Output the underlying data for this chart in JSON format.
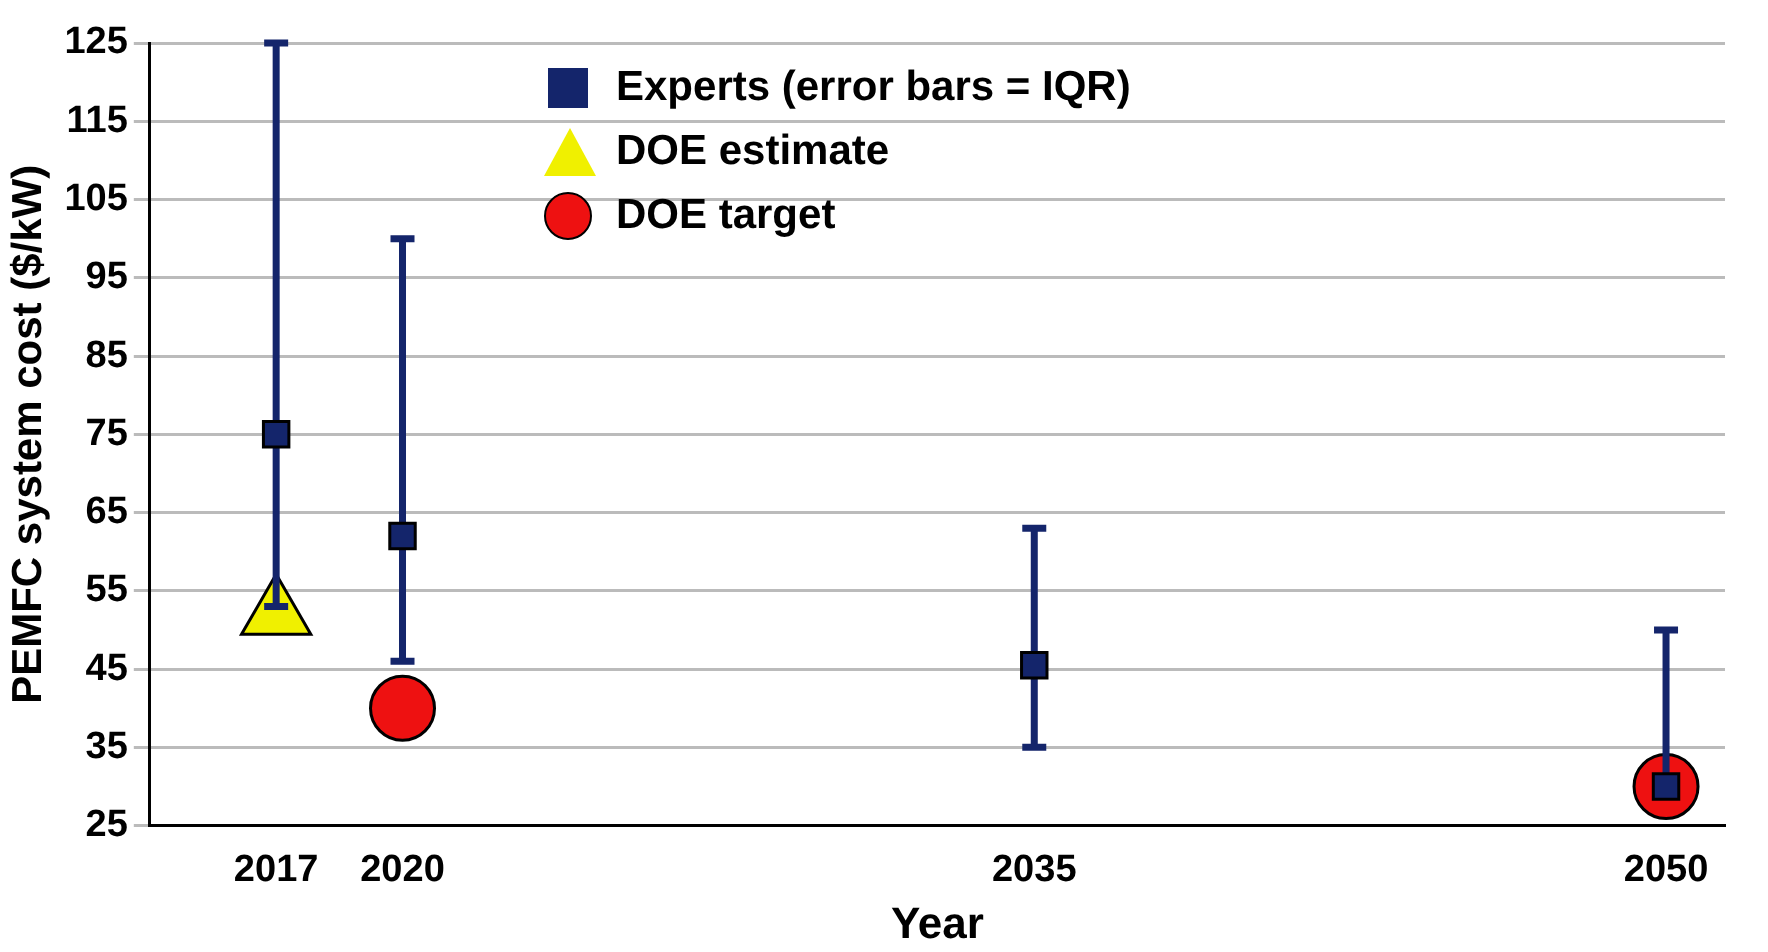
{
  "chart_data": {
    "type": "scatter",
    "xlabel": "Year",
    "ylabel": "PEMFC system cost ($/kW)",
    "xlim": [
      2014,
      2051.4
    ],
    "xticks": [
      2017,
      2020,
      2035,
      2050
    ],
    "ylim": [
      25,
      125
    ],
    "yticks": [
      25,
      35,
      45,
      55,
      65,
      75,
      85,
      95,
      105,
      115,
      125
    ],
    "grid": "y",
    "legend": "top left",
    "series": [
      {
        "name": "Experts (error bars = IQR)",
        "color": "#14256b",
        "marker": "square",
        "x": [
          2017,
          2020,
          2035,
          2050
        ],
        "values": [
          75,
          62,
          45.5,
          30
        ],
        "errors": [
          [
            53,
            125
          ],
          [
            46,
            100
          ],
          [
            35,
            63
          ],
          [
            30,
            50
          ]
        ]
      },
      {
        "name": "DOE estimate",
        "color": "#f0f000",
        "marker": "triangle",
        "x": [
          2017
        ],
        "values": [
          52
        ]
      },
      {
        "name": "DOE target",
        "color": "#ee1111",
        "marker": "circle",
        "x": [
          2020,
          2050
        ],
        "values": [
          40,
          30
        ]
      }
    ]
  }
}
